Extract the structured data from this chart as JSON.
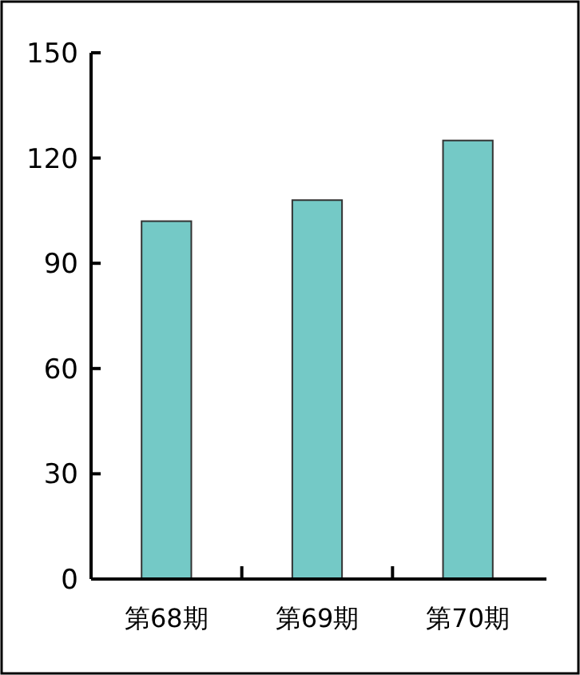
{
  "chart_data": {
    "type": "bar",
    "categories": [
      "第68期",
      "第69期",
      "第70期"
    ],
    "values": [
      102,
      108,
      125
    ],
    "color": "#74c9c6",
    "ylim": [
      0,
      150
    ],
    "yticks": [
      0,
      30,
      60,
      90,
      120,
      150
    ],
    "grid": false
  }
}
